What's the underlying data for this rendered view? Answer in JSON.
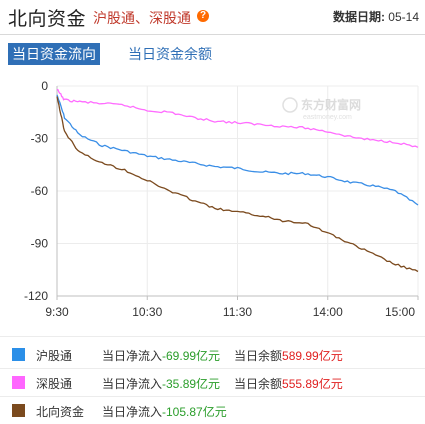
{
  "header": {
    "title": "北向资金",
    "subtitle": "沪股通、深股通",
    "help_icon": "?",
    "date_label": "数据日期:",
    "date_value": "05-14"
  },
  "tabs": [
    {
      "label": "当日资金流向",
      "active": true
    },
    {
      "label": "当日资金余额",
      "active": false
    }
  ],
  "watermark": {
    "text_cn": "东方财富网",
    "text_en": "eastmoney.com"
  },
  "chart_data": {
    "type": "line",
    "x_ticks": [
      "9:30",
      "10:30",
      "11:30",
      "14:00",
      "15:00"
    ],
    "y_ticks": [
      0,
      -30,
      -60,
      -90,
      -120
    ],
    "ylim": [
      -120,
      0
    ],
    "grid": true,
    "series": [
      {
        "name": "沪股通",
        "color": "#3a8ee6",
        "x": [
          "9:30",
          "9:35",
          "9:45",
          "10:00",
          "10:15",
          "10:30",
          "10:45",
          "11:00",
          "11:15",
          "11:30",
          "13:15",
          "13:30",
          "13:45",
          "14:00",
          "14:15",
          "14:30",
          "14:45",
          "15:00"
        ],
        "values": [
          -5,
          -18,
          -28,
          -34,
          -37,
          -40,
          -42,
          -44,
          -46,
          -47,
          -49,
          -50,
          -50,
          -52,
          -55,
          -57,
          -60,
          -68
        ]
      },
      {
        "name": "深股通",
        "color": "#ff6cff",
        "x": [
          "9:30",
          "9:35",
          "9:45",
          "10:00",
          "10:15",
          "10:30",
          "10:45",
          "11:00",
          "11:15",
          "11:30",
          "13:15",
          "13:30",
          "13:45",
          "14:00",
          "14:15",
          "14:30",
          "14:45",
          "15:00"
        ],
        "values": [
          -2,
          -8,
          -9,
          -10,
          -11,
          -14,
          -15,
          -18,
          -20,
          -21,
          -22,
          -23,
          -24,
          -26,
          -29,
          -31,
          -32,
          -35
        ]
      },
      {
        "name": "北向资金",
        "color": "#7b4a1e",
        "x": [
          "9:30",
          "9:35",
          "9:45",
          "10:00",
          "10:15",
          "10:30",
          "10:45",
          "11:00",
          "11:15",
          "11:30",
          "13:15",
          "13:30",
          "13:45",
          "14:00",
          "14:15",
          "14:30",
          "14:45",
          "15:00"
        ],
        "values": [
          -6,
          -26,
          -38,
          -44,
          -48,
          -54,
          -60,
          -65,
          -70,
          -72,
          -74,
          -77,
          -78,
          -84,
          -90,
          -96,
          -102,
          -106
        ]
      }
    ]
  },
  "legend": [
    {
      "name": "沪股通",
      "color": "#2b8fe8",
      "net_label": "当日净流入",
      "net_value": "-69.99亿元",
      "bal_label": "当日余额",
      "bal_value": "589.99亿元"
    },
    {
      "name": "深股通",
      "color": "#ff66ff",
      "net_label": "当日净流入",
      "net_value": "-35.89亿元",
      "bal_label": "当日余额",
      "bal_value": "555.89亿元"
    },
    {
      "name": "北向资金",
      "color": "#7b4a1e",
      "net_label": "当日净流入",
      "net_value": "-105.87亿元",
      "bal_label": "",
      "bal_value": ""
    }
  ]
}
